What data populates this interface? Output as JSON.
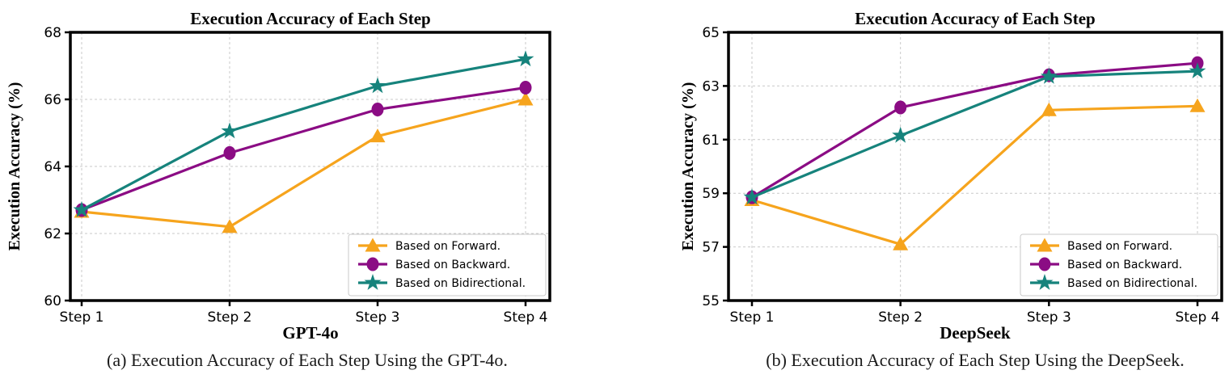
{
  "figures": [
    {
      "label": "a",
      "caption": "(a) Execution Accuracy of Each Step Using the GPT-4o."
    },
    {
      "label": "b",
      "caption": "(b) Execution Accuracy of Each Step Using the DeepSeek."
    }
  ],
  "colors": {
    "forward": "#F6A41D",
    "backward": "#8B0C84",
    "bidirectional": "#16837C",
    "grid": "#c9c9c9",
    "spine": "#000000",
    "legend_border": "#c9c9c9",
    "legend_background": "#ffffff"
  },
  "chart_data": [
    {
      "type": "line",
      "title": "Execution Accuracy of Each Step",
      "xlabel": "GPT-4o",
      "ylabel": "Execution Accuracy (%)",
      "categories": [
        "Step 1",
        "Step 2",
        "Step 3",
        "Step 4"
      ],
      "ylim": [
        60,
        68
      ],
      "yticks": [
        60,
        62,
        64,
        66,
        68
      ],
      "grid": true,
      "legend_position": "lower right",
      "series": [
        {
          "name": "Based on Forward.",
          "marker": "triangle",
          "color": "#F6A41D",
          "values": [
            62.65,
            62.2,
            64.9,
            66.0
          ]
        },
        {
          "name": "Based on Backward.",
          "marker": "circle",
          "color": "#8B0C84",
          "values": [
            62.7,
            64.4,
            65.7,
            66.35
          ]
        },
        {
          "name": "Based on Bidirectional.",
          "marker": "star",
          "color": "#16837C",
          "values": [
            62.7,
            65.05,
            66.4,
            67.2
          ]
        }
      ]
    },
    {
      "type": "line",
      "title": "Execution Accuracy of Each Step",
      "xlabel": "DeepSeek",
      "ylabel": "Execution Accuracy (%)",
      "categories": [
        "Step 1",
        "Step 2",
        "Step 3",
        "Step 4"
      ],
      "ylim": [
        55,
        65
      ],
      "yticks": [
        55,
        57,
        59,
        61,
        63,
        65
      ],
      "grid": true,
      "legend_position": "lower right",
      "series": [
        {
          "name": "Based on Forward.",
          "marker": "triangle",
          "color": "#F6A41D",
          "values": [
            58.75,
            57.1,
            62.1,
            62.25
          ]
        },
        {
          "name": "Based on Backward.",
          "marker": "circle",
          "color": "#8B0C84",
          "values": [
            58.85,
            62.2,
            63.4,
            63.85
          ]
        },
        {
          "name": "Based on Bidirectional.",
          "marker": "star",
          "color": "#16837C",
          "values": [
            58.85,
            61.15,
            63.35,
            63.55
          ]
        }
      ]
    }
  ]
}
